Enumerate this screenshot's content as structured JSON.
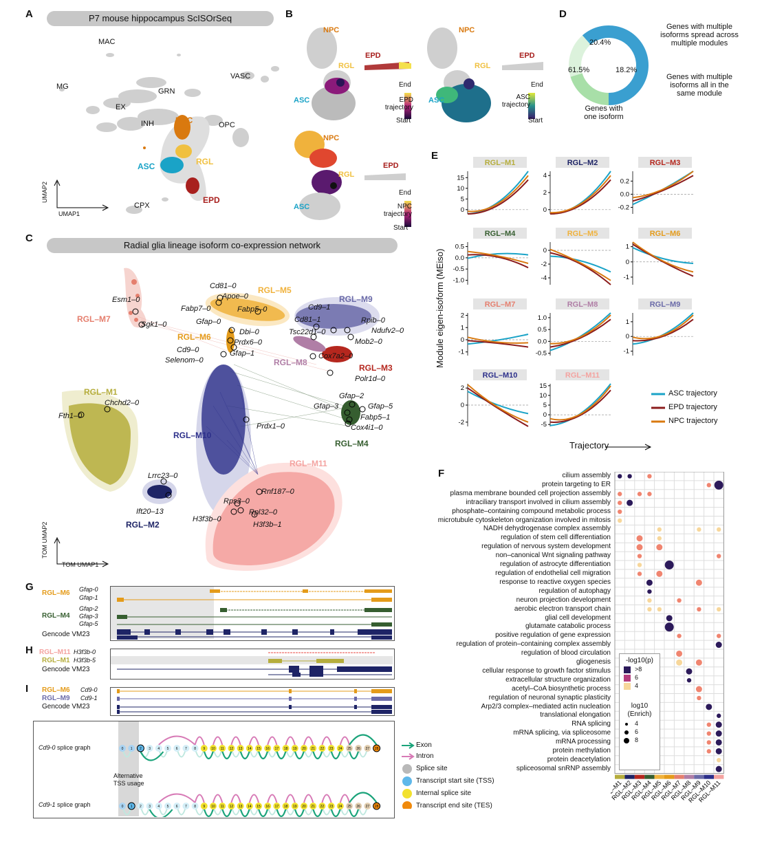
{
  "panels": {
    "A": "A",
    "B": "B",
    "C": "C",
    "D": "D",
    "E": "E",
    "F": "F",
    "G": "G",
    "H": "H",
    "I": "I"
  },
  "colors": {
    "npc": "#d9790f",
    "asc": "#1aa3c7",
    "rgl": "#f0c040",
    "epd": "#a8201e",
    "grey": "#c8c8c8",
    "m1": "#b5ad3c",
    "m2": "#1e2466",
    "m3": "#b5271e",
    "m4": "#365e30",
    "m5": "#f0b23c",
    "m6": "#e49b1a",
    "m7": "#e57f6e",
    "m8": "#b07ea6",
    "m9": "#6a6aa8",
    "m10": "#2c2f8a",
    "m11": "#f4a3a0"
  },
  "panelA": {
    "title": "P7 mouse hippocampus ScISOrSeq",
    "clusters": {
      "mac": "MAC",
      "mg": "MG",
      "grn": "GRN",
      "ex": "EX",
      "inh": "INH",
      "npc": "NPC",
      "vasc": "VASC",
      "opc": "OPC",
      "asc": "ASC",
      "rgl": "RGL",
      "epd": "EPD",
      "cpx": "CPX"
    },
    "axis_y": "UMAP2",
    "axis_x": "UMAP1"
  },
  "panelB": {
    "npc": "NPC",
    "rgl": "RGL",
    "asc": "ASC",
    "epd": "EPD",
    "epd_traj": [
      "EPD",
      "trajectory"
    ],
    "asc_traj": [
      "ASC",
      "trajectory"
    ],
    "npc_traj": [
      "NPC",
      "trajectory"
    ],
    "end": "End",
    "start": "Start"
  },
  "panelD": {
    "chart_data": {
      "type": "pie",
      "slices": [
        {
          "label": "Genes with one isoform",
          "value": 61.5,
          "text": "61.5%"
        },
        {
          "label": "Genes with multiple isoforms spread across multiple modules",
          "value": 20.4,
          "text": "20.4%"
        },
        {
          "label": "Genes with multiple isoforms all in the same module",
          "value": 18.2,
          "text": "18.2%"
        }
      ]
    },
    "lbl_multi_spread": [
      "Genes with multiple",
      "isoforms spread across",
      "multiple modules"
    ],
    "lbl_multi_same": [
      "Genes with multiple",
      "isoforms all in the",
      "same module"
    ],
    "lbl_one": [
      "Genes with",
      "one isoform"
    ],
    "p1": "61.5%",
    "p2": "20.4%",
    "p3": "18.2%"
  },
  "panelC": {
    "title": "Radial glia lineage isoform co-expression network",
    "modules": {
      "m1": "RGL–M1",
      "m2": "RGL–M2",
      "m3": "RGL–M3",
      "m4": "RGL–M4",
      "m5": "RGL–M5",
      "m6": "RGL–M6",
      "m7": "RGL–M7",
      "m8": "RGL–M8",
      "m9": "RGL–M9",
      "m10": "RGL–M10",
      "m11": "RGL–M11"
    },
    "genes": {
      "esm1": "Esm1–0",
      "sgk1": "Sgk1–0",
      "cd81_0": "Cd81–0",
      "apoe": "Apoe–0",
      "fabp7": "Fabp7–0",
      "fabp5_0": "Fabp5–0",
      "gfap0": "Gfap–0",
      "dbi": "Dbi–0",
      "prdx6": "Prdx6–0",
      "cd9_0": "Cd9–0",
      "gfap1": "Gfap–1",
      "selenom": "Selenom–0",
      "cd9_1": "Cd9–1",
      "cd81_1": "Cd81–1",
      "rpib": "Rpib–0",
      "tsc22d1": "Tsc22d1–0",
      "ndufv2": "Ndufv2–0",
      "mob2": "Mob2–0",
      "cox7a2": "Cox7a2–0",
      "polr1d": "Polr1d–0",
      "chchd2": "Chchd2–0",
      "fth1": "Fth1–0",
      "prdx1": "Prdx1–0",
      "gfap2": "Gfap–2",
      "gfap3": "Gfap–3",
      "gfap5": "Gfap–5",
      "fabp5_1": "Fabp5–1",
      "cox4i1": "Cox4i1–0",
      "lrrc23": "Lrrc23–0",
      "ift20": "Ift20–13",
      "rnf187": "Rnf187–0",
      "rps3": "Rps3–0",
      "rpl32": "Rpl32–0",
      "h3f3b0": "H3f3b–0",
      "h3f3b1": "H3f3b–1"
    },
    "axis_y": "TOM UMAP2",
    "axis_x": "TOM UMAP1"
  },
  "panelE": {
    "ylabel": "Module eigen-isoform (MEiso)",
    "xlabel": "Trajectory",
    "legend": {
      "asc": "ASC trajectory",
      "epd": "EPD trajectory",
      "npc": "NPC trajectory"
    },
    "chart_data": [
      {
        "title": "RGL–M1",
        "yticks": [
          "15",
          "10",
          "5",
          "0"
        ],
        "ylim": [
          -2,
          18
        ]
      },
      {
        "title": "RGL–M2",
        "yticks": [
          "4",
          "2",
          "0"
        ],
        "ylim": [
          -0.5,
          4.5
        ]
      },
      {
        "title": "RGL–M3",
        "yticks": [
          "0.2",
          "0.0",
          "-0.2"
        ],
        "ylim": [
          -0.3,
          0.35
        ]
      },
      {
        "title": "RGL–M4",
        "yticks": [
          "0.5",
          "0.0",
          "-0.5",
          "-1.0"
        ],
        "ylim": [
          -1.2,
          0.7
        ]
      },
      {
        "title": "RGL–M5",
        "yticks": [
          "0",
          "-2",
          "-4"
        ],
        "ylim": [
          -5,
          1.2
        ]
      },
      {
        "title": "RGL–M6",
        "yticks": [
          "1",
          "0",
          "-1"
        ],
        "ylim": [
          -1.5,
          1.3
        ]
      },
      {
        "title": "RGL–M7",
        "yticks": [
          "2",
          "1",
          "0",
          "-1"
        ],
        "ylim": [
          -1.3,
          2.2
        ]
      },
      {
        "title": "RGL–M8",
        "yticks": [
          "1.0",
          "0.5",
          "0.0",
          "-0.5"
        ],
        "ylim": [
          -0.6,
          1.2
        ]
      },
      {
        "title": "RGL–M9",
        "yticks": [
          "1",
          "0",
          "-1"
        ],
        "ylim": [
          -1.3,
          1.6
        ]
      },
      {
        "title": "RGL–M10",
        "yticks": [
          "2",
          "0",
          "-2"
        ],
        "ylim": [
          -2.5,
          2.5
        ]
      },
      {
        "title": "RGL–M11",
        "yticks": [
          "15",
          "10",
          "5",
          "0",
          "-5"
        ],
        "ylim": [
          -6,
          16
        ]
      }
    ]
  },
  "panelF": {
    "chart_data": {
      "type": "scatter",
      "terms": [
        "cilium assembly",
        "protein targeting to ER",
        "plasma membrane bounded cell projection assembly",
        "intraciliary transport involved in cilium assembly",
        "phosphate–containing compound metabolic process",
        "microtubule cytoskeleton organization involved in mitosis",
        "NADH dehydrogenase complex assembly",
        "regulation of stem cell differentiation",
        "regulation of nervous system development",
        "non–canonical Wnt signaling pathway",
        "regulation of astrocyte differentiation",
        "regulation of endothelial cell migration",
        "response to reactive oxygen species",
        "regulation of autophagy",
        "neuron projection development",
        "aerobic electron transport chain",
        "glial cell development",
        "glutamate catabolic process",
        "positive regulation of gene expression",
        "regulation of protein–containing complex assembly",
        "regulation of blood circulation",
        "gliogenesis",
        "cellular response to growth factor stimulus",
        "extracellular structure organization",
        "acetyl–CoA biosynthetic process",
        "regulation of neuronal synaptic plasticity",
        "Arp2/3 complex–mediated actin nucleation",
        "translational elongation",
        "RNA splicing",
        "mRNA splicing, via spliceosome",
        "mRNA processing",
        "protein methylation",
        "protein deacetylation",
        "spliceosomal snRNP assembly"
      ],
      "modules": [
        "RGL–M1",
        "RGL–M2",
        "RGL–M3",
        "RGL–M4",
        "RGL–M5",
        "RGL–M6",
        "RGL–M7",
        "RGL–M8",
        "RGL–M9",
        "RGL–M10",
        "RGL–M11"
      ]
    },
    "legend_p_title": "-log10(p)",
    "legend_p": [
      ">8",
      "6",
      "4"
    ],
    "legend_e_title": [
      "log10",
      "(Enrich)"
    ],
    "legend_e": [
      "4",
      "6",
      "8"
    ]
  },
  "panelG": {
    "m6": "RGL–M6",
    "m4": "RGL–M4",
    "gfap0": "Gfap-0",
    "gfap1": "Gfap-1",
    "gfap2": "Gfap-2",
    "gfap3": "Gfap-3",
    "gfap5": "Gfap-5",
    "gencode": "Gencode VM23"
  },
  "panelH": {
    "m11": "RGL–M11",
    "m1": "RGL–M1",
    "h0": "H3f3b-0",
    "h5": "H3f3b-5",
    "gencode": "Gencode VM23"
  },
  "panelI": {
    "m6": "RGL–M6",
    "m9": "RGL–M9",
    "cd90": "Cd9-0",
    "cd91": "Cd9-1",
    "gencode": "Gencode VM23",
    "graph0": "Cd9-0",
    "graph1": "Cd9-1",
    "graph_suffix": " splice graph",
    "alt": [
      "Alternative",
      "TSS usage"
    ],
    "legend": {
      "exon": "Exon",
      "intron": "Intron",
      "splice": "Splice site",
      "tss": "Transcript start site (TSS)",
      "internal": "Internal splice site",
      "tes": "Transcript end site (TES)"
    },
    "nodes": [
      "0",
      "1",
      "2",
      "3",
      "4",
      "5",
      "6",
      "7",
      "8",
      "9",
      "10",
      "11",
      "12",
      "13",
      "14",
      "15",
      "16",
      "17",
      "18",
      "19",
      "20",
      "21",
      "22",
      "23",
      "24",
      "25",
      "26",
      "27",
      "28"
    ]
  }
}
